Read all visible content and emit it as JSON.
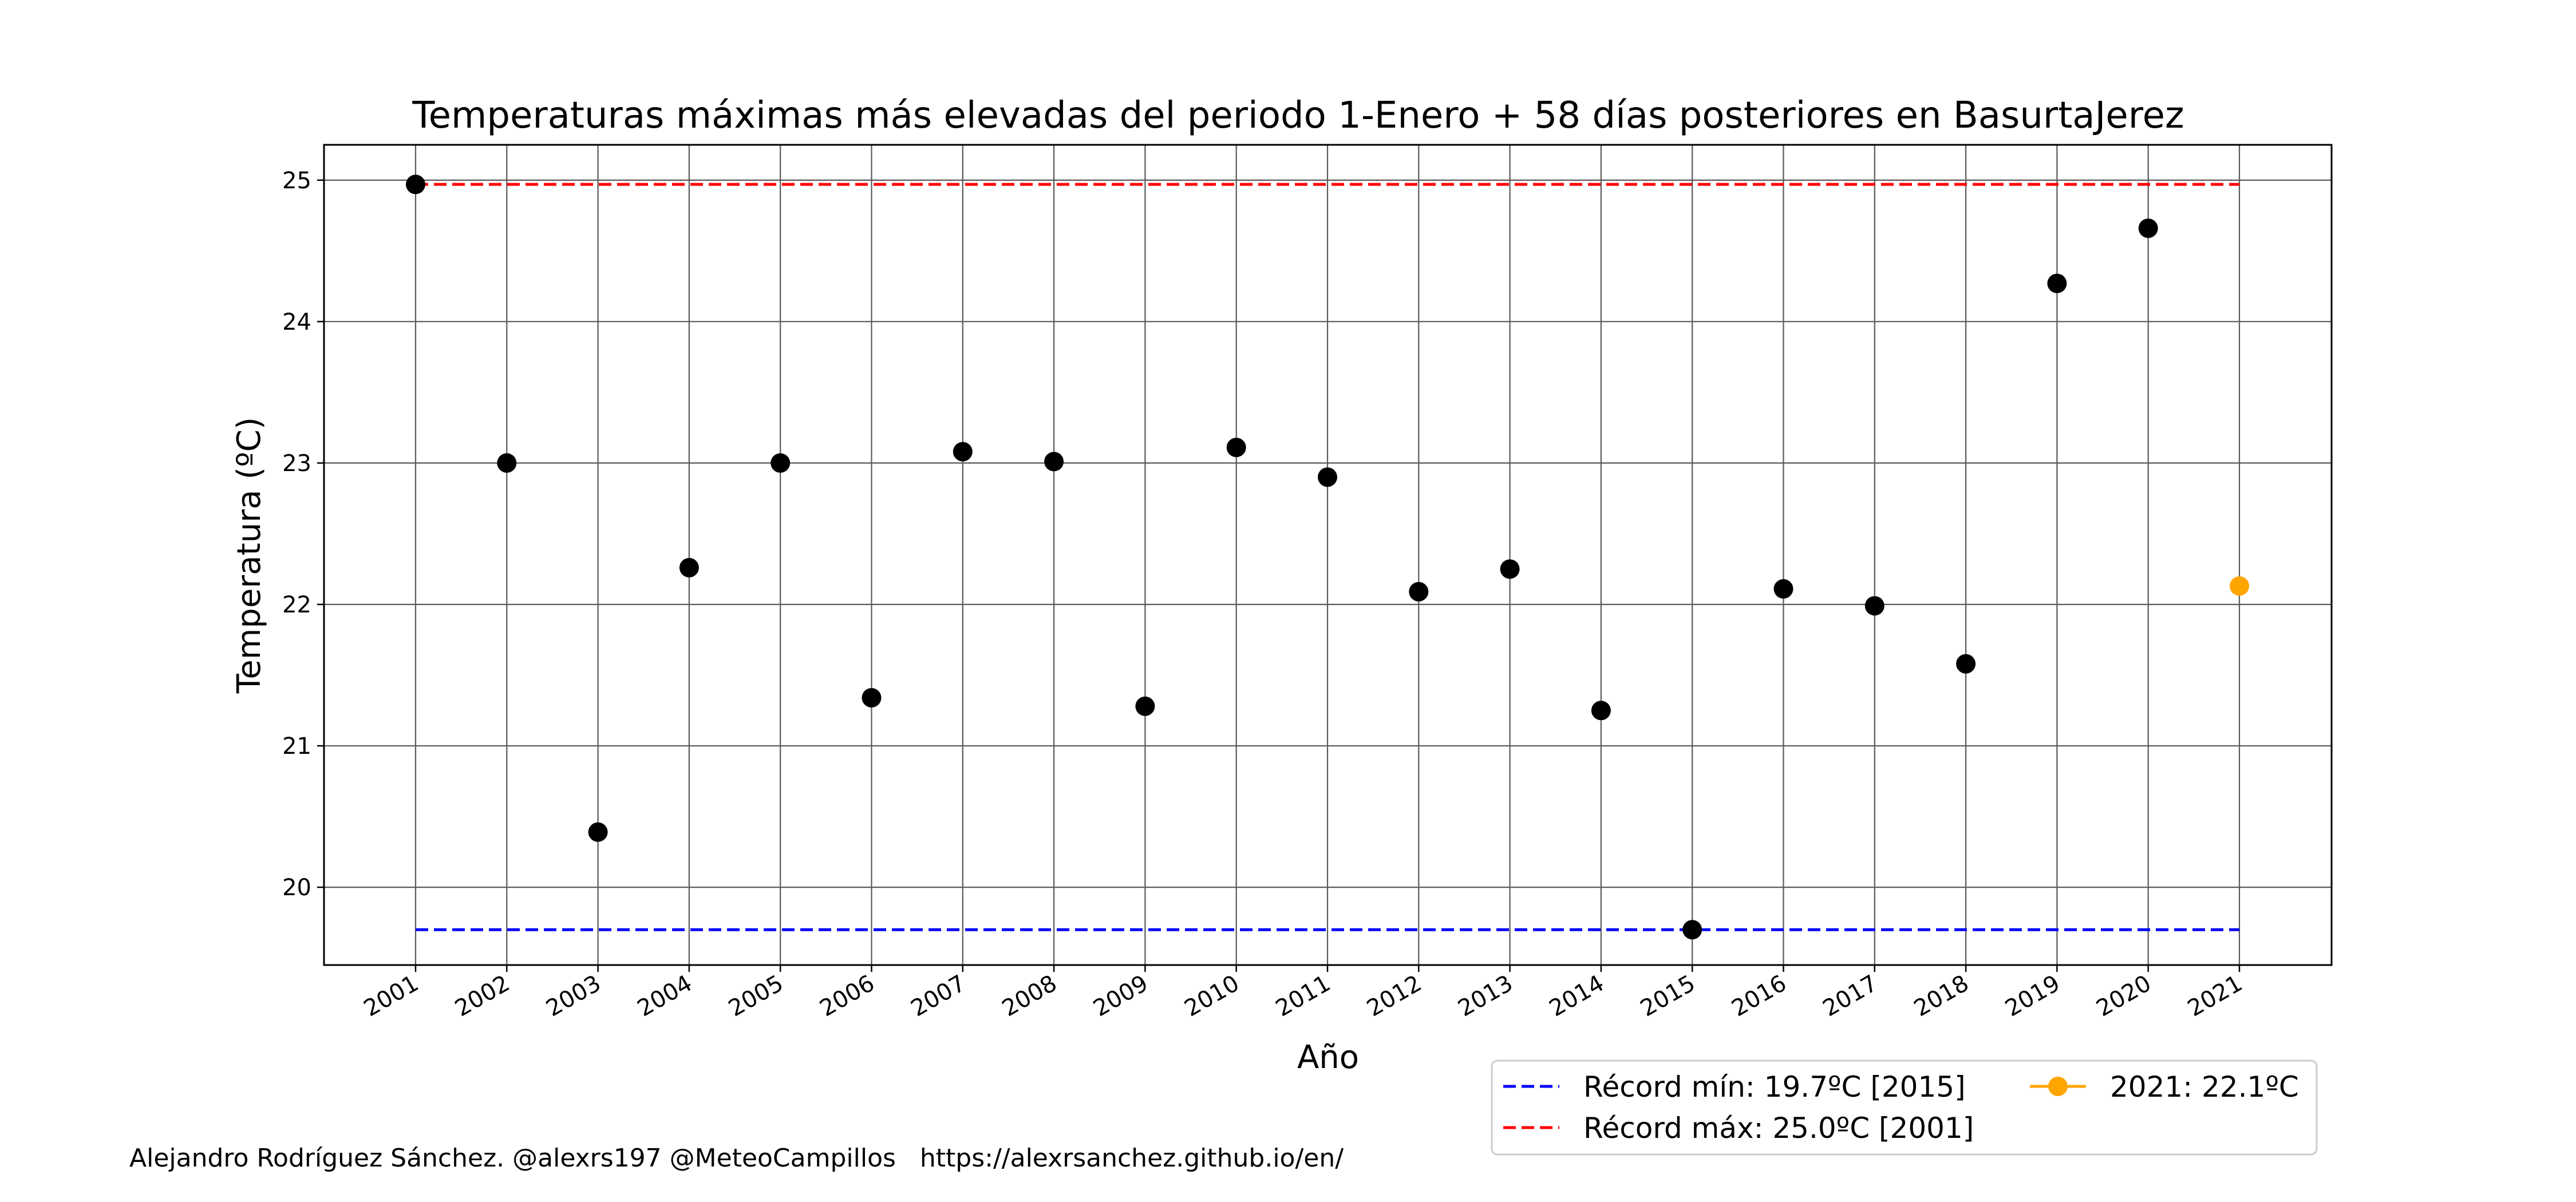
{
  "chart_data": {
    "type": "scatter",
    "title": "Temperaturas máximas más elevadas del periodo 1-Enero + 58 días posteriores en BasurtaJerez",
    "xlabel": "Año",
    "ylabel": "Temperatura (ºC)",
    "ylim": [
      19.45,
      25.25
    ],
    "yticks": [
      20,
      21,
      22,
      23,
      24,
      25
    ],
    "grid": true,
    "legend_position": "bottom-right, below plot",
    "x": [
      "2001",
      "2002",
      "2003",
      "2004",
      "2005",
      "2006",
      "2007",
      "2008",
      "2009",
      "2010",
      "2011",
      "2012",
      "2013",
      "2014",
      "2015",
      "2016",
      "2017",
      "2018",
      "2019",
      "2020",
      "2021"
    ],
    "series": [
      {
        "color": "#000000",
        "points": [
          {
            "x": "2001",
            "y": 24.97
          },
          {
            "x": "2002",
            "y": 23.0
          },
          {
            "x": "2003",
            "y": 20.39
          },
          {
            "x": "2004",
            "y": 22.26
          },
          {
            "x": "2005",
            "y": 23.0
          },
          {
            "x": "2006",
            "y": 21.34
          },
          {
            "x": "2007",
            "y": 23.08
          },
          {
            "x": "2008",
            "y": 23.01
          },
          {
            "x": "2009",
            "y": 21.28
          },
          {
            "x": "2010",
            "y": 23.11
          },
          {
            "x": "2011",
            "y": 22.9
          },
          {
            "x": "2012",
            "y": 22.09
          },
          {
            "x": "2013",
            "y": 22.25
          },
          {
            "x": "2014",
            "y": 21.25
          },
          {
            "x": "2015",
            "y": 19.7
          },
          {
            "x": "2016",
            "y": 22.11
          },
          {
            "x": "2017",
            "y": 21.99
          },
          {
            "x": "2018",
            "y": 21.58
          },
          {
            "x": "2019",
            "y": 24.27
          },
          {
            "x": "2020",
            "y": 24.66
          }
        ]
      },
      {
        "name": "2021: 22.1ºC",
        "color": "#ffa500",
        "points": [
          {
            "x": "2021",
            "y": 22.13
          }
        ]
      }
    ],
    "reference_lines": [
      {
        "name": "Récord mín: 19.7ºC [2015]",
        "y": 19.7,
        "color": "#0000ff",
        "style": "dashed",
        "x_from": "2001",
        "x_to": "2021"
      },
      {
        "name": "Récord máx: 25.0ºC [2001]",
        "y": 24.97,
        "color": "#ff0000",
        "style": "dashed",
        "x_from": "2001",
        "x_to": "2021"
      }
    ]
  },
  "credits": "Alejandro Rodríguez Sánchez. @alexrs197 @MeteoCampillos   https://alexrsanchez.github.io/en/"
}
